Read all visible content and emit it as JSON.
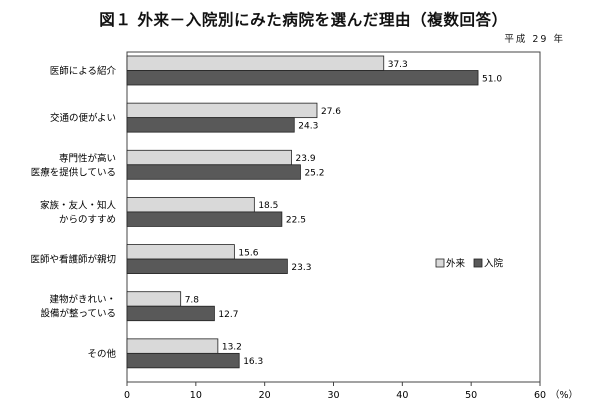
{
  "header": {
    "title": "図１ 外来－入院別にみた病院を選んだ理由（複数回答）",
    "period": "平成 29 年"
  },
  "chart_data": {
    "type": "bar",
    "orientation": "horizontal",
    "title": "図１ 外来－入院別にみた病院を選んだ理由（複数回答）",
    "categories": [
      [
        "医師による紹介"
      ],
      [
        "交通の便がよい"
      ],
      [
        "専門性が高い",
        "医療を提供している"
      ],
      [
        "家族・友人・知人",
        "からのすすめ"
      ],
      [
        "医師や看護師が親切"
      ],
      [
        "建物がきれい・",
        "設備が整っている"
      ],
      [
        "その他"
      ]
    ],
    "series": [
      {
        "name": "外来",
        "color": "#d9d9d9",
        "values": [
          37.3,
          27.6,
          23.9,
          18.5,
          15.6,
          7.8,
          13.2
        ]
      },
      {
        "name": "入院",
        "color": "#595959",
        "values": [
          51.0,
          24.3,
          25.2,
          22.5,
          23.3,
          12.7,
          16.3
        ]
      }
    ],
    "xlim": [
      0,
      60
    ],
    "xticks": [
      0,
      10,
      20,
      30,
      40,
      50,
      60
    ],
    "unit_label": "（%）",
    "grid": false,
    "legend_position": "right-middle"
  }
}
